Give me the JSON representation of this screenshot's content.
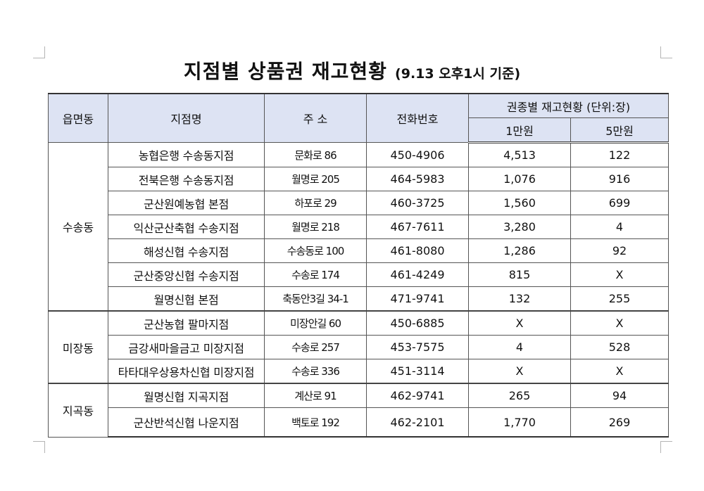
{
  "title": {
    "main": "지점별 상품권 재고현황",
    "sub": "(9.13 오후1시 기준)"
  },
  "header": {
    "district": "읍면동",
    "branch": "지점명",
    "address": "주 소",
    "phone": "전화번호",
    "stock_group": "권종별 재고현황 (단위:장)",
    "stock_10k": "1만원",
    "stock_50k": "5만원"
  },
  "groups": [
    {
      "district": "수송동",
      "rows": [
        {
          "branch": "농협은행 수송동지점",
          "address": "문화로 86",
          "phone": "450-4906",
          "stock_10k": "4,513",
          "stock_50k": "122"
        },
        {
          "branch": "전북은행 수송동지점",
          "address": "월명로 205",
          "phone": "464-5983",
          "stock_10k": "1,076",
          "stock_50k": "916"
        },
        {
          "branch": "군산원예농협 본점",
          "address": "하포로 29",
          "phone": "460-3725",
          "stock_10k": "1,560",
          "stock_50k": "699"
        },
        {
          "branch": "익산군산축협 수송지점",
          "address": "월명로 218",
          "phone": "467-7611",
          "stock_10k": "3,280",
          "stock_50k": "4"
        },
        {
          "branch": "해성신협 수송지점",
          "address": "수송동로 100",
          "phone": "461-8080",
          "stock_10k": "1,286",
          "stock_50k": "92"
        },
        {
          "branch": "군산중앙신협 수송지점",
          "address": "수송로 174",
          "phone": "461-4249",
          "stock_10k": "815",
          "stock_50k": "X"
        },
        {
          "branch": "월명신협 본점",
          "address": "축동안3길 34-1",
          "phone": "471-9741",
          "stock_10k": "132",
          "stock_50k": "255"
        }
      ]
    },
    {
      "district": "미장동",
      "rows": [
        {
          "branch": "군산농협 팔마지점",
          "address": "미장안길 60",
          "phone": "450-6885",
          "stock_10k": "X",
          "stock_50k": "X"
        },
        {
          "branch": "금강새마을금고 미장지점",
          "address": "수송로 257",
          "phone": "453-7575",
          "stock_10k": "4",
          "stock_50k": "528"
        },
        {
          "branch": "타타대우상용차신협 미장지점",
          "address": "수송로 336",
          "phone": "451-3114",
          "stock_10k": "X",
          "stock_50k": "X"
        }
      ]
    },
    {
      "district": "지곡동",
      "rows": [
        {
          "branch": "월명신협 지곡지점",
          "address": "계산로 91",
          "phone": "462-9741",
          "stock_10k": "265",
          "stock_50k": "94"
        },
        {
          "branch": "군산반석신협 나운지점",
          "address": "백토로 192",
          "phone": "462-2101",
          "stock_10k": "1,770",
          "stock_50k": "269"
        }
      ]
    }
  ],
  "colors": {
    "header_bg": "#dde3f3",
    "border": "#555555"
  }
}
